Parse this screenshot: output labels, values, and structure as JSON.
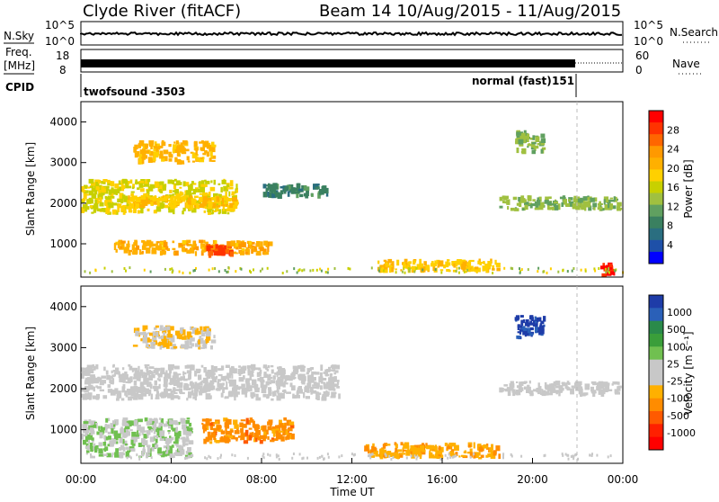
{
  "header": {
    "station": "Clyde River (fitACF)",
    "beam_range": "Beam 14 10/Aug/2015 - 11/Aug/2015"
  },
  "top_panels": {
    "nsky_label": "N.Sky",
    "nsky_ticks": [
      "10^5",
      "10^0"
    ],
    "nsearch_label": "N.Search",
    "nsearch_ticks": [
      "10^5",
      "10^0"
    ],
    "freq_label_1": "Freq.",
    "freq_label_2": "[MHz]",
    "freq_ticks": [
      "18",
      "8"
    ],
    "nave_label": "Nave",
    "nave_ticks": [
      "60",
      "0"
    ],
    "cpid_label": "CPID",
    "cpid_modes": [
      {
        "name": "twofsound",
        "id": "-3503"
      },
      {
        "name": "normal (fast)",
        "id": "151"
      }
    ]
  },
  "panels": {
    "power": {
      "ylabel": "Slant Range [km]",
      "yticks": [
        "1000",
        "2000",
        "3000",
        "4000"
      ],
      "cbar_label": "Power [dB]",
      "cbar_ticks": [
        "28",
        "24",
        "20",
        "16",
        "12",
        "8",
        "4"
      ],
      "cbar_colors": [
        "#ff0000",
        "#ff3300",
        "#ff6600",
        "#ff9900",
        "#ffb000",
        "#ffd000",
        "#c8d000",
        "#a0c040",
        "#60a060",
        "#3a8060",
        "#2a6e80",
        "#1e50a8",
        "#0000ff"
      ]
    },
    "velocity": {
      "ylabel": "Slant Range [km]",
      "yticks": [
        "1000",
        "2000",
        "3000",
        "4000"
      ],
      "cbar_label": "Velocity [m s⁻¹]",
      "cbar_ticks": [
        "1000",
        "500",
        "100",
        "25",
        "-25",
        "-100",
        "-500",
        "-1000"
      ],
      "cbar_colors": [
        "#1e3ca8",
        "#2a60b8",
        "#2a8a4a",
        "#3a9e3a",
        "#70c050",
        "#c8c8c8",
        "#c8c8c8",
        "#ffb000",
        "#ff8c00",
        "#ff5a00",
        "#ff2000",
        "#ff0000"
      ]
    }
  },
  "xaxis": {
    "ticks": [
      "00:00",
      "04:00",
      "08:00",
      "12:00",
      "16:00",
      "20:00",
      "00:00"
    ],
    "label": "Time UT"
  },
  "chart_data": {
    "type": "heatmap",
    "x_range_hours": [
      0,
      24
    ],
    "y_range_km": [
      180,
      4500
    ],
    "panels": [
      {
        "name": "Power",
        "unit": "dB",
        "color_range": [
          0,
          30
        ],
        "regions": [
          {
            "t0": 0.0,
            "t1": 7.0,
            "r0": 1700,
            "r1": 2600,
            "value": 16
          },
          {
            "t0": 1.3,
            "t1": 8.5,
            "r0": 700,
            "r1": 1100,
            "value": 20
          },
          {
            "t0": 5.5,
            "t1": 6.8,
            "r0": 650,
            "r1": 1000,
            "value": 26
          },
          {
            "t0": 2.0,
            "t1": 7.0,
            "r0": 1850,
            "r1": 2200,
            "value": 18
          },
          {
            "t0": 2.3,
            "t1": 6.0,
            "r0": 2950,
            "r1": 3550,
            "value": 19
          },
          {
            "t0": 8.0,
            "t1": 11.0,
            "r0": 2100,
            "r1": 2500,
            "value": 8
          },
          {
            "t0": 13.0,
            "t1": 18.6,
            "r0": 280,
            "r1": 640,
            "value": 18
          },
          {
            "t0": 18.5,
            "t1": 24.0,
            "r0": 1800,
            "r1": 2200,
            "value": 12
          },
          {
            "t0": 19.2,
            "t1": 20.6,
            "r0": 3200,
            "r1": 3800,
            "value": 12
          },
          {
            "t0": 23.0,
            "t1": 23.7,
            "r0": 180,
            "r1": 600,
            "value": 28
          }
        ]
      },
      {
        "name": "Velocity",
        "unit": "m s-1",
        "color_range": [
          -1000,
          1000
        ],
        "regions": [
          {
            "t0": 0.0,
            "t1": 11.5,
            "r0": 1700,
            "r1": 2600,
            "value": 0
          },
          {
            "t0": 0.0,
            "t1": 5.0,
            "r0": 300,
            "r1": 1300,
            "value": 150
          },
          {
            "t0": 5.3,
            "t1": 9.5,
            "r0": 650,
            "r1": 1300,
            "value": -400
          },
          {
            "t0": 2.3,
            "t1": 6.0,
            "r0": 2950,
            "r1": 3550,
            "value": -150
          },
          {
            "t0": 12.5,
            "t1": 18.6,
            "r0": 280,
            "r1": 700,
            "value": -300
          },
          {
            "t0": 18.5,
            "t1": 24.0,
            "r0": 1800,
            "r1": 2200,
            "value": 0
          },
          {
            "t0": 19.2,
            "t1": 20.6,
            "r0": 3200,
            "r1": 3800,
            "value": 900
          }
        ]
      }
    ],
    "mode_change_hour": 21.8
  }
}
